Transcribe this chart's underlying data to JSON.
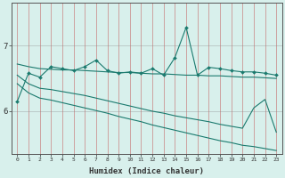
{
  "title": "",
  "xlabel": "Humidex (Indice chaleur)",
  "ylabel": "",
  "ytick_labels": [
    "6",
    "7"
  ],
  "ytick_positions": [
    6.0,
    7.0
  ],
  "xlim": [
    -0.5,
    23.5
  ],
  "ylim": [
    5.35,
    7.65
  ],
  "bg_color": "#d8f0ec",
  "line_color": "#1a7a6e",
  "x": [
    0,
    1,
    2,
    3,
    4,
    5,
    6,
    7,
    8,
    9,
    10,
    11,
    12,
    13,
    14,
    15,
    16,
    17,
    18,
    19,
    20,
    21,
    22,
    23
  ],
  "line1": [
    6.15,
    6.58,
    6.52,
    6.68,
    6.65,
    6.62,
    6.68,
    6.78,
    6.62,
    6.58,
    6.6,
    6.58,
    6.65,
    6.55,
    6.82,
    7.28,
    6.55,
    6.67,
    6.65,
    6.62,
    6.6,
    6.6,
    6.58,
    6.55
  ],
  "line2": [
    6.72,
    6.68,
    6.65,
    6.64,
    6.63,
    6.63,
    6.62,
    6.61,
    6.6,
    6.59,
    6.59,
    6.58,
    6.57,
    6.57,
    6.56,
    6.55,
    6.55,
    6.54,
    6.54,
    6.53,
    6.52,
    6.52,
    6.51,
    6.5
  ],
  "line3": [
    6.55,
    6.42,
    6.35,
    6.33,
    6.3,
    6.27,
    6.24,
    6.2,
    6.16,
    6.12,
    6.08,
    6.04,
    6.0,
    5.97,
    5.93,
    5.9,
    5.87,
    5.84,
    5.8,
    5.77,
    5.74,
    6.05,
    6.18,
    5.68
  ],
  "line4": [
    6.42,
    6.28,
    6.2,
    6.17,
    6.13,
    6.09,
    6.05,
    6.01,
    5.97,
    5.92,
    5.88,
    5.84,
    5.79,
    5.75,
    5.71,
    5.67,
    5.63,
    5.59,
    5.55,
    5.52,
    5.48,
    5.46,
    5.43,
    5.4
  ]
}
